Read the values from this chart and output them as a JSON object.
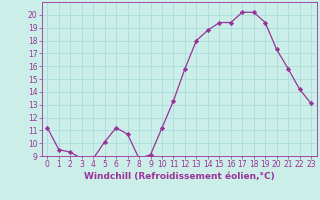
{
  "x": [
    0,
    1,
    2,
    3,
    4,
    5,
    6,
    7,
    8,
    9,
    10,
    11,
    12,
    13,
    14,
    15,
    16,
    17,
    18,
    19,
    20,
    21,
    22,
    23
  ],
  "y": [
    11.2,
    9.5,
    9.3,
    8.8,
    8.8,
    10.1,
    11.2,
    10.7,
    8.8,
    9.1,
    11.2,
    13.3,
    15.8,
    18.0,
    18.8,
    19.4,
    19.4,
    20.2,
    20.2,
    19.4,
    17.3,
    15.8,
    14.2,
    13.1
  ],
  "line_color": "#993399",
  "marker": "D",
  "marker_size": 2.2,
  "line_width": 0.9,
  "xlabel": "Windchill (Refroidissement éolien,°C)",
  "xlabel_fontsize": 6.5,
  "ylim": [
    9,
    21
  ],
  "xlim": [
    -0.5,
    23.5
  ],
  "yticks": [
    9,
    10,
    11,
    12,
    13,
    14,
    15,
    16,
    17,
    18,
    19,
    20
  ],
  "xticks": [
    0,
    1,
    2,
    3,
    4,
    5,
    6,
    7,
    8,
    9,
    10,
    11,
    12,
    13,
    14,
    15,
    16,
    17,
    18,
    19,
    20,
    21,
    22,
    23
  ],
  "bg_color": "#cceee8",
  "grid_color": "#aadddd",
  "tick_color": "#993399",
  "tick_label_color": "#993399",
  "xlabel_color": "#993399",
  "xtick_fontsize": 5.5,
  "ytick_fontsize": 5.5
}
